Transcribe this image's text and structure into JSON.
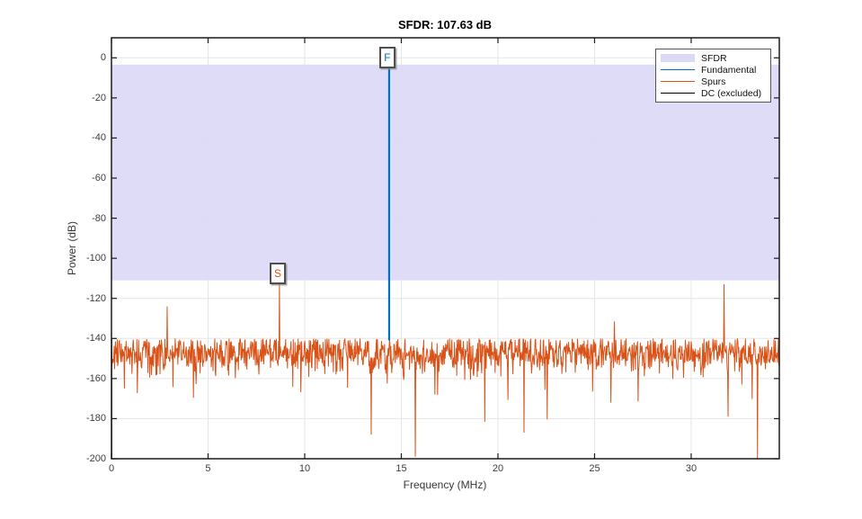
{
  "title": "SFDR: 107.63 dB",
  "chart_data": {
    "type": "line",
    "title": "SFDR: 107.63 dB",
    "xlabel": "Frequency (MHz)",
    "ylabel": "Power (dB)",
    "xlim": [
      0,
      34.56
    ],
    "ylim": [
      -200,
      10
    ],
    "xticks": [
      0,
      5,
      10,
      15,
      20,
      25,
      30
    ],
    "yticks": [
      0,
      -20,
      -40,
      -60,
      -80,
      -100,
      -120,
      -140,
      -160,
      -180,
      -200
    ],
    "grid": true,
    "grid_color": "#e6e6e6",
    "axis_color": "#1a1a1a",
    "sfdr_db": 107.63,
    "sfdr_region": {
      "top_db": -3.4,
      "bottom_db": -111.03,
      "color": "#dcd9f6"
    },
    "fundamental": {
      "freq_mhz": 14.37,
      "power_db": -3.4,
      "skirt_bottom_db": -141,
      "color": "#0072bd",
      "marker": "F"
    },
    "max_spur": {
      "freq_mhz": 8.7,
      "power_db": -111.0,
      "color": "#d95319",
      "marker": "S"
    },
    "spur_features": [
      {
        "freq_mhz": 2.88,
        "power_db": -124
      },
      {
        "freq_mhz": 8.7,
        "power_db": -111
      },
      {
        "freq_mhz": 13.45,
        "power_db": -188
      },
      {
        "freq_mhz": 15.72,
        "power_db": -199
      },
      {
        "freq_mhz": 21.35,
        "power_db": -187
      },
      {
        "freq_mhz": 26.02,
        "power_db": -131.5
      },
      {
        "freq_mhz": 31.7,
        "power_db": -113
      },
      {
        "freq_mhz": 31.92,
        "power_db": -179
      },
      {
        "freq_mhz": 33.43,
        "power_db": -200
      }
    ],
    "noise_floor": {
      "mean_db": -147.5,
      "std_db": 4.6,
      "clamp_top_db": -140,
      "dip_probability": 0.018,
      "dip_min_db": 6,
      "dip_range_db": 22,
      "points": 1500,
      "seed": 1337,
      "color": "#d95319"
    },
    "dc": {
      "freq_mhz": 0.015,
      "top_db": -140,
      "bottom_db": -200,
      "color": "#000000"
    }
  },
  "legend": {
    "items": [
      {
        "label": "SFDR",
        "swatch": "patch",
        "color": "#dcd9f6"
      },
      {
        "label": "Fundamental",
        "swatch": "line",
        "color": "#0072bd"
      },
      {
        "label": "Spurs",
        "swatch": "line",
        "color": "#d95319"
      },
      {
        "label": "DC (excluded)",
        "swatch": "line",
        "color": "#000000"
      }
    ]
  }
}
